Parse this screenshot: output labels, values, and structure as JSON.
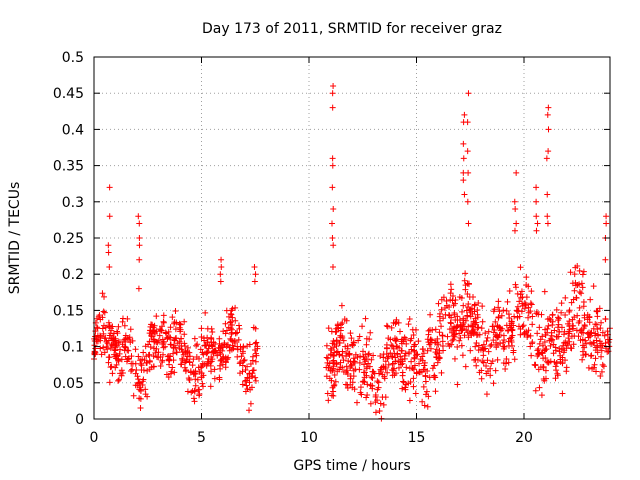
{
  "chart_data": {
    "type": "scatter",
    "title": "Day 173 of 2011, SRMTID for receiver graz",
    "xlabel": "GPS time / hours",
    "ylabel": "SRMTID / TECUs",
    "xlim": [
      0,
      24
    ],
    "ylim": [
      0,
      0.5
    ],
    "x_ticks": [
      0,
      5,
      10,
      15,
      20
    ],
    "x_tick_labels": [
      "0",
      "5",
      "10",
      "15",
      "20"
    ],
    "y_ticks": [
      0,
      0.05,
      0.1,
      0.15,
      0.2,
      0.25,
      0.3,
      0.35,
      0.4,
      0.45,
      0.5
    ],
    "y_tick_labels": [
      "0",
      "0.05",
      "0.1",
      "0.15",
      "0.2",
      "0.25",
      "0.3",
      "0.35",
      "0.4",
      "0.45",
      "0.5"
    ],
    "grid": true,
    "marker": "+",
    "color": "#ff0000",
    "series": [
      {
        "name": "SRMTID",
        "segments": [
          {
            "x_start": 0.0,
            "x_end": 7.6,
            "base": 0.09,
            "spread": 0.035
          },
          {
            "x_start": 10.8,
            "x_end": 15.5,
            "base": 0.075,
            "spread": 0.04
          },
          {
            "x_start": 15.5,
            "x_end": 24.0,
            "base": 0.12,
            "spread": 0.045
          }
        ],
        "spikes": [
          {
            "x": 0.7,
            "values": [
              0.32,
              0.28,
              0.24,
              0.23,
              0.21
            ]
          },
          {
            "x": 2.1,
            "values": [
              0.28,
              0.27,
              0.25,
              0.24,
              0.22,
              0.18
            ]
          },
          {
            "x": 5.9,
            "values": [
              0.22,
              0.21,
              0.2,
              0.19
            ]
          },
          {
            "x": 7.5,
            "values": [
              0.21,
              0.2,
              0.19
            ]
          },
          {
            "x": 11.1,
            "values": [
              0.46,
              0.45,
              0.43,
              0.36,
              0.35,
              0.32,
              0.29,
              0.27,
              0.25,
              0.24,
              0.21
            ]
          },
          {
            "x": 17.2,
            "values": [
              0.42,
              0.41,
              0.38,
              0.36,
              0.34,
              0.33,
              0.31
            ]
          },
          {
            "x": 17.4,
            "values": [
              0.45,
              0.41,
              0.37,
              0.34,
              0.3,
              0.27
            ]
          },
          {
            "x": 19.6,
            "values": [
              0.34,
              0.3,
              0.29,
              0.27,
              0.26
            ]
          },
          {
            "x": 20.6,
            "values": [
              0.32,
              0.3,
              0.28,
              0.27,
              0.26
            ]
          },
          {
            "x": 21.1,
            "values": [
              0.43,
              0.42,
              0.4,
              0.37,
              0.36,
              0.31,
              0.28,
              0.27
            ]
          },
          {
            "x": 23.8,
            "values": [
              0.28,
              0.27,
              0.25,
              0.22
            ]
          }
        ],
        "n_points": 1500
      }
    ]
  }
}
